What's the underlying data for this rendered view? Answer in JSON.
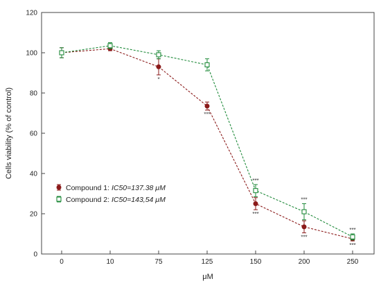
{
  "chart_data": {
    "type": "line",
    "categories": [
      "0",
      "10",
      "75",
      "125",
      "150",
      "200",
      "250"
    ],
    "xlabel": "μM",
    "ylabel": "Cells viability (% of control)",
    "ylim": [
      0,
      120
    ],
    "yticks": [
      0,
      20,
      40,
      60,
      80,
      100,
      120
    ],
    "grid": false,
    "legend_position": "bottom-left",
    "series": [
      {
        "name": "Compound 1",
        "ic50_label": "IC50=137.38",
        "unit": "μM",
        "color": "#8b1a1a",
        "marker": "filled-circle",
        "values": [
          100,
          102,
          93,
          73.5,
          25,
          13.5,
          7.5
        ],
        "errors": [
          2.5,
          1,
          4,
          2,
          3,
          3,
          1
        ],
        "significance": [
          "",
          "",
          "*",
          "***",
          "***",
          "***",
          "***"
        ]
      },
      {
        "name": "Compound 2",
        "ic50_label": "IC50=143,54",
        "unit": "μM",
        "color": "#1f8a3a",
        "marker": "open-square",
        "values": [
          100,
          103.5,
          99,
          94,
          31.5,
          21,
          8.5
        ],
        "errors": [
          2.5,
          1.5,
          2,
          3,
          3,
          4,
          1.5
        ],
        "significance": [
          "",
          "",
          "",
          "",
          "***",
          "***",
          "***"
        ]
      }
    ]
  }
}
